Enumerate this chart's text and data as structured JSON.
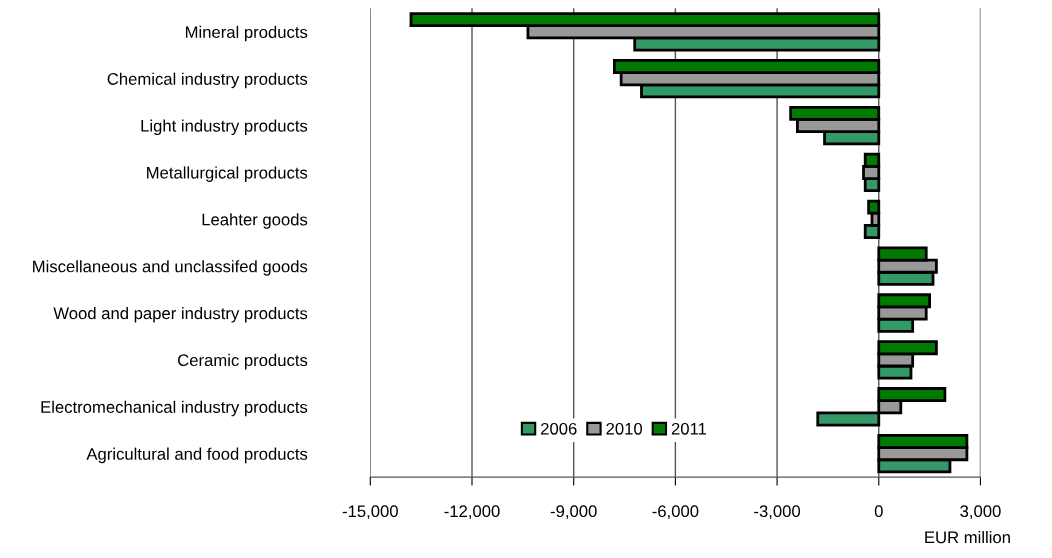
{
  "chart_data": {
    "type": "bar",
    "orientation": "horizontal",
    "xlabel": "EUR million",
    "categories": [
      "Mineral products",
      "Chemical industry products",
      "Light industry products",
      "Metallurgical products",
      "Leahter goods",
      "Miscellaneous and unclassifed goods",
      "Wood and paper industry products",
      "Ceramic products",
      "Electromechanical industry products",
      "Agricultural and food products"
    ],
    "series": [
      {
        "name": "2006",
        "color": "#339966",
        "values": [
          -7200,
          -7000,
          -1600,
          -400,
          -400,
          1600,
          1000,
          950,
          -1800,
          2100
        ]
      },
      {
        "name": "2010",
        "color": "#999999",
        "values": [
          -10350,
          -7600,
          -2400,
          -450,
          -200,
          1700,
          1400,
          1000,
          650,
          2600
        ]
      },
      {
        "name": "2011",
        "color": "#007a00",
        "values": [
          -13800,
          -7800,
          -2600,
          -400,
          -300,
          1400,
          1500,
          1700,
          1950,
          2600
        ]
      }
    ],
    "xlim": [
      -15000,
      3000
    ],
    "xticks": [
      {
        "value": -15000,
        "label": "-15,000"
      },
      {
        "value": -12000,
        "label": "-12,000"
      },
      {
        "value": -9000,
        "label": "-9,000"
      },
      {
        "value": -6000,
        "label": "-6,000"
      },
      {
        "value": -3000,
        "label": "-3,000"
      },
      0,
      {
        "value": 3000,
        "label": "3,000"
      }
    ],
    "grid": "x",
    "legend": "bottom"
  }
}
